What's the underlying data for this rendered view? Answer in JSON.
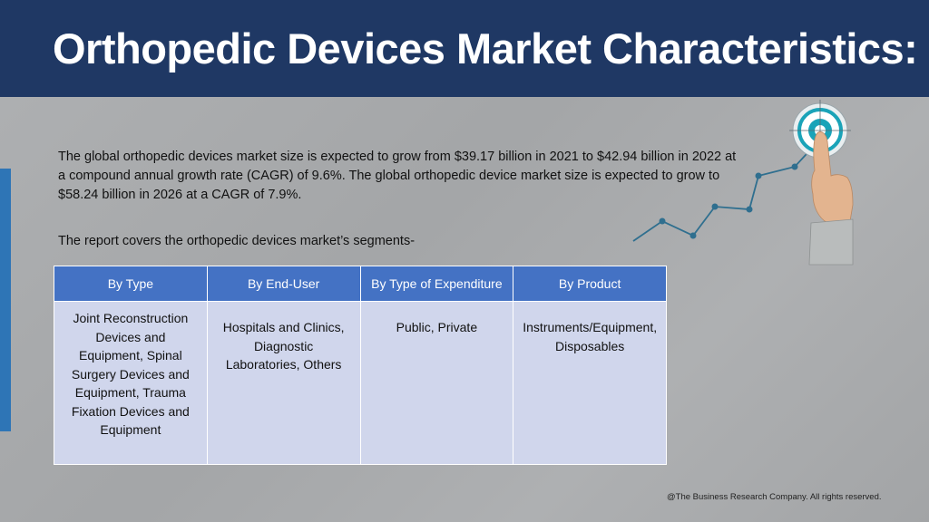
{
  "header": {
    "title": "Orthopedic Devices Market Characteristics:"
  },
  "body": {
    "paragraph": "The global orthopedic devices market size is expected to grow from $39.17 billion in 2021 to $42.94 billion in 2022 at a compound annual growth rate (CAGR) of 9.6%. The global orthopedic device market size is expected to grow to $58.24 billion in 2026 at a CAGR of 7.9%.",
    "segments_intro": "The report covers the orthopedic devices market’s segments-"
  },
  "table": {
    "headers": [
      "By Type",
      "By End-User",
      "By Type of Expenditure",
      "By Product"
    ],
    "cells": [
      "Joint Reconstruction Devices and Equipment, Spinal Surgery Devices and Equipment, Trauma Fixation Devices and Equipment",
      "Hospitals and Clinics, Diagnostic Laboratories, Others",
      "Public, Private",
      "Instruments/Equipment, Disposables"
    ]
  },
  "graphic": {
    "icon": "target-growth-hand-icon",
    "colors": {
      "line": "#2f6f8f",
      "target": "#1aa3b8"
    }
  },
  "footer": {
    "copyright": "@The Business Research Company. All rights reserved."
  },
  "colors": {
    "header_bg": "#1f3864",
    "accent_bar": "#2e75b6",
    "table_header": "#4472c4",
    "table_cell": "#d0d6ec",
    "background": "#a9abad"
  }
}
